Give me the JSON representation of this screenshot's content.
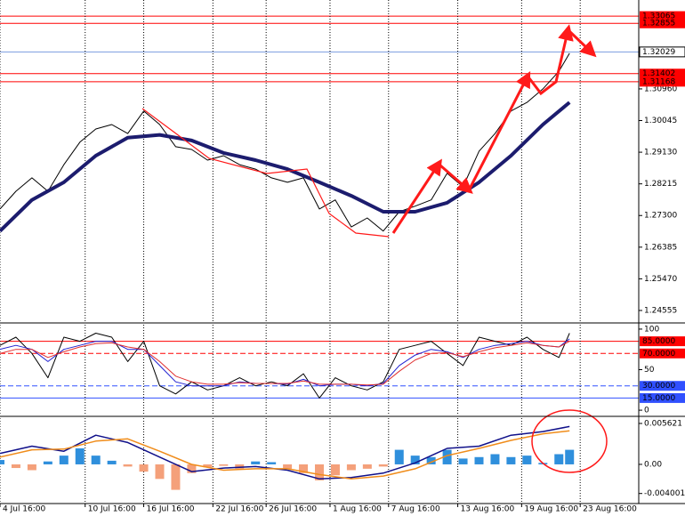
{
  "chart_data": [
    {
      "type": "line",
      "xlim": [
        0,
        120
      ],
      "ylim": [
        1.2422,
        1.3353
      ],
      "x": [
        0,
        3,
        6,
        9,
        12,
        15,
        18,
        21,
        24,
        27,
        30,
        33,
        36,
        39,
        42,
        45,
        48,
        51,
        54,
        57,
        60,
        63,
        66,
        69,
        72,
        75,
        78,
        81,
        84,
        87,
        90,
        93,
        96,
        99,
        102,
        105,
        107
      ],
      "yticks": [
        {
          "value": 1.3096,
          "label": "1.30960"
        },
        1.30045,
        {
          "value": 1.2913,
          "label": "1.29130"
        },
        1.28215,
        {
          "value": 1.273,
          "label": "1.27300"
        },
        1.26385,
        {
          "value": 1.2547,
          "label": "1.25470"
        },
        1.24555
      ],
      "levels": [
        {
          "value": 1.33065,
          "color": "#ff0000"
        },
        {
          "value": 1.32855,
          "color": "#ff0000"
        },
        {
          "value": 1.32029,
          "color": "#7b9be0"
        },
        {
          "value": 1.31402,
          "color": "#ff0000"
        },
        {
          "value": 1.31168,
          "color": "#ff0000"
        }
      ],
      "series": [
        {
          "color": "#000000",
          "width": 1,
          "values": [
            1.2749,
            1.28,
            1.2839,
            1.28,
            1.2877,
            1.2942,
            1.298,
            1.2993,
            1.2967,
            1.3032,
            1.2993,
            1.2929,
            1.2921,
            1.289,
            1.2903,
            1.2877,
            1.2864,
            1.2839,
            1.2826,
            1.2839,
            1.2749,
            1.2775,
            1.2697,
            1.2723,
            1.2685,
            1.2741,
            1.2757,
            1.2775,
            1.2852,
            1.2813,
            1.2916,
            1.2967,
            1.3032,
            1.3057,
            1.3096,
            1.3147,
            1.3199
          ]
        },
        {
          "color": "#1c1c6e",
          "width": 4,
          "x": [
            0,
            6,
            12,
            18,
            24,
            30,
            36,
            42,
            48,
            54,
            60,
            66,
            72,
            78,
            84,
            90,
            96,
            102,
            107
          ],
          "values": [
            1.2685,
            1.2775,
            1.2826,
            1.2903,
            1.2955,
            1.2963,
            1.2947,
            1.2911,
            1.289,
            1.2864,
            1.2826,
            1.2787,
            1.2741,
            1.2741,
            1.2767,
            1.2826,
            1.2903,
            1.2993,
            1.3057
          ]
        }
      ]
    },
    {
      "type": "line",
      "xlim": [
        0,
        120
      ],
      "ylim": [
        -6.5,
        105.4
      ],
      "x": [
        0,
        3,
        6,
        9,
        12,
        15,
        18,
        21,
        24,
        27,
        30,
        33,
        36,
        39,
        42,
        45,
        48,
        51,
        54,
        57,
        60,
        63,
        66,
        69,
        72,
        75,
        78,
        81,
        84,
        87,
        90,
        93,
        96,
        99,
        102,
        105,
        107
      ],
      "yticks": [
        100,
        50,
        0
      ],
      "levels": [
        {
          "value": 85,
          "label": "85.0000",
          "color": "#ff0000",
          "style": "solid"
        },
        {
          "value": 70,
          "label": "70.0000",
          "color": "#ff0000",
          "style": "dashed"
        },
        {
          "value": 30,
          "label": "30.0000",
          "color": "#3050ff",
          "style": "dashed"
        },
        {
          "value": 15,
          "label": "15.0000",
          "color": "#3050ff",
          "style": "solid"
        }
      ],
      "series": [
        {
          "color": "#000000",
          "width": 1,
          "values": [
            80,
            90,
            70,
            40,
            90,
            85,
            95,
            90,
            60,
            85,
            30,
            20,
            35,
            25,
            30,
            40,
            30,
            35,
            30,
            45,
            15,
            40,
            30,
            25,
            35,
            75,
            80,
            85,
            70,
            55,
            90,
            85,
            80,
            90,
            75,
            65,
            95
          ]
        },
        {
          "color": "#2020d0",
          "width": 1,
          "values": [
            75,
            80,
            75,
            60,
            75,
            80,
            85,
            85,
            75,
            75,
            55,
            35,
            30,
            30,
            30,
            35,
            33,
            33,
            32,
            38,
            30,
            32,
            32,
            30,
            33,
            55,
            68,
            75,
            72,
            65,
            75,
            80,
            82,
            85,
            80,
            78,
            88
          ]
        },
        {
          "color": "#e03030",
          "width": 1,
          "values": [
            70,
            75,
            75,
            65,
            72,
            78,
            82,
            83,
            78,
            75,
            60,
            42,
            35,
            32,
            32,
            34,
            33,
            33,
            33,
            36,
            32,
            32,
            32,
            31,
            32,
            48,
            62,
            70,
            71,
            66,
            72,
            77,
            80,
            83,
            80,
            78,
            85
          ]
        }
      ]
    },
    {
      "type": "bar",
      "xlim": [
        0,
        120
      ],
      "ylim": [
        -0.00526,
        0.00635
      ],
      "x": [
        0,
        3,
        6,
        9,
        12,
        15,
        18,
        21,
        24,
        27,
        30,
        33,
        36,
        39,
        42,
        45,
        48,
        51,
        54,
        57,
        60,
        63,
        66,
        69,
        72,
        75,
        78,
        81,
        84,
        87,
        90,
        93,
        96,
        99,
        102,
        105,
        107
      ],
      "values": [
        0.0006,
        -0.0005,
        -0.0008,
        0.0004,
        0.0012,
        0.0022,
        0.0012,
        0.0005,
        -0.0003,
        -0.001,
        -0.002,
        -0.0035,
        -0.0012,
        -0.0004,
        -0.0002,
        -0.0006,
        0.0004,
        0.0003,
        -0.0006,
        -0.0012,
        -0.0022,
        -0.0015,
        -0.0008,
        -0.0006,
        -0.0003,
        0.002,
        0.0012,
        0.001,
        0.002,
        0.0008,
        0.001,
        0.0014,
        0.001,
        0.0012,
        0.0002,
        0.0014,
        0.002
      ],
      "bar_colors": [
        "#2f8fdc",
        "#f4a07a"
      ],
      "yticks": [
        {
          "value": 0.005621,
          "label": "0.005621"
        },
        {
          "value": 0,
          "label": "0.00"
        },
        {
          "value": -0.004001,
          "label": "-0.004001"
        }
      ],
      "xticks": [
        {
          "value": 0,
          "label": "4 Jul 16:00"
        },
        {
          "value": 16,
          "label": "10 Jul 16:00"
        },
        {
          "value": 27,
          "label": "16 Jul 16:00"
        },
        {
          "value": 40,
          "label": "22 Jul 16:00"
        },
        {
          "value": 50,
          "label": "26 Jul 16:00"
        },
        {
          "value": 62,
          "label": "1 Aug 16:00"
        },
        {
          "value": 73,
          "label": "7 Aug 16:00"
        },
        {
          "value": 86,
          "label": "13 Aug 16:00"
        },
        {
          "value": 98,
          "label": "19 Aug 16:00"
        },
        {
          "value": 109,
          "label": "23 Aug 16:00"
        }
      ],
      "series": [
        {
          "color": "#10108a",
          "width": 1.5,
          "x": [
            0,
            6,
            12,
            18,
            24,
            30,
            36,
            42,
            48,
            54,
            60,
            66,
            72,
            78,
            84,
            90,
            96,
            102,
            107
          ],
          "values": [
            0.0015,
            0.0025,
            0.0018,
            0.004,
            0.003,
            0.001,
            -0.001,
            -0.0005,
            -0.0003,
            -0.0008,
            -0.002,
            -0.0018,
            -0.0012,
            0.0002,
            0.0022,
            0.0025,
            0.004,
            0.0045,
            0.0052
          ]
        },
        {
          "color": "#f08c1a",
          "width": 1.5,
          "x": [
            0,
            6,
            12,
            18,
            24,
            30,
            36,
            42,
            48,
            54,
            60,
            66,
            72,
            78,
            84,
            90,
            96,
            102,
            107
          ],
          "values": [
            0.001,
            0.002,
            0.0021,
            0.0032,
            0.0035,
            0.0018,
            0.0,
            -0.0008,
            -0.0006,
            -0.0006,
            -0.0014,
            -0.002,
            -0.0016,
            -0.0006,
            0.0012,
            0.0022,
            0.0033,
            0.0042,
            0.0046
          ]
        }
      ]
    }
  ]
}
